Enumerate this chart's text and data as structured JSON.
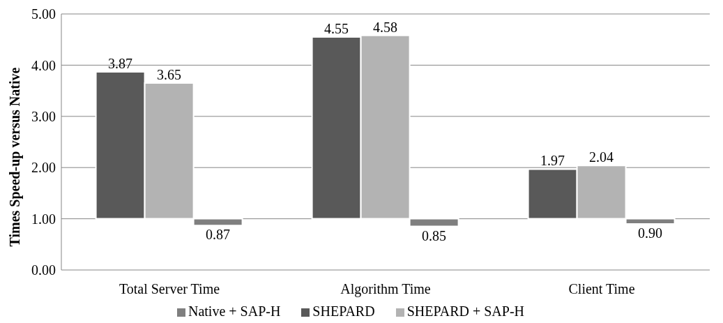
{
  "chart_data": {
    "type": "bar",
    "ylabel": "Times Speed-up versus Native",
    "categories": [
      "Total Server Time",
      "Algorithm Time",
      "Client Time"
    ],
    "series": [
      {
        "name": "SHEPARD",
        "color": "#595959",
        "base": [
          1,
          1,
          1
        ],
        "values": [
          2.87,
          3.55,
          0.97
        ],
        "value_labels": [
          "3.87",
          "4.55",
          "1.97"
        ]
      },
      {
        "name": "SHEPARD + SAP-H",
        "color": "#b3b3b3",
        "base": [
          1,
          1,
          1
        ],
        "values": [
          2.65,
          3.58,
          1.04
        ],
        "value_labels": [
          "3.65",
          "4.58",
          "2.04"
        ]
      },
      {
        "name": "Native + SAP-H",
        "color": "#7f7f7f",
        "base": [
          1,
          1,
          1
        ],
        "values": [
          -0.13,
          -0.15,
          -0.1
        ],
        "value_labels": [
          "0.87",
          "0.85",
          "0.90"
        ]
      }
    ],
    "ylim": [
      0,
      5
    ],
    "yticks": [
      {
        "value": 0,
        "label": "0.00"
      },
      {
        "value": 1,
        "label": "1.00"
      },
      {
        "value": 2,
        "label": "2.00"
      },
      {
        "value": 3,
        "label": "3.00"
      },
      {
        "value": 4,
        "label": "4.00"
      },
      {
        "value": 5,
        "label": "5.00"
      }
    ],
    "grid": "y",
    "legend": "bottom"
  }
}
